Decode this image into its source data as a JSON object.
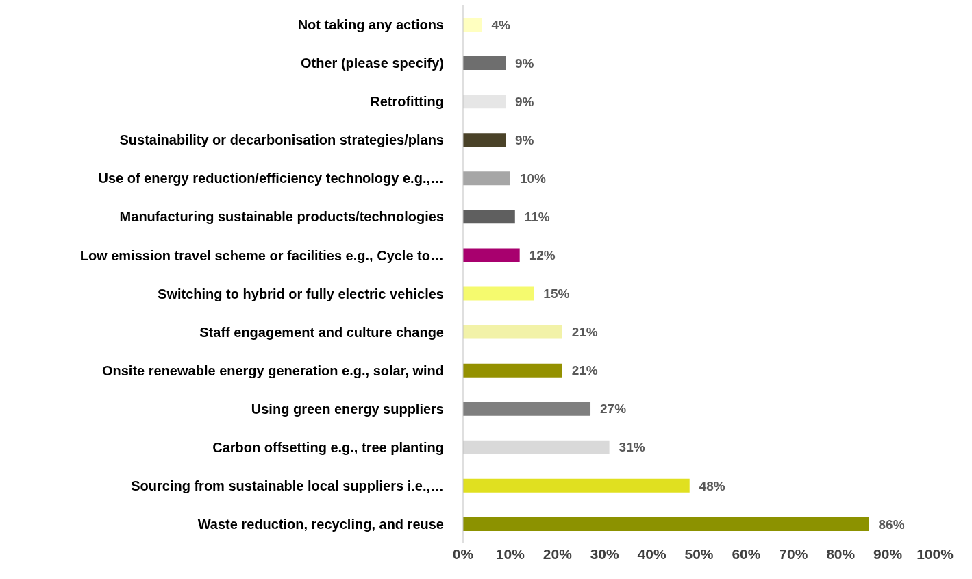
{
  "chart_data": {
    "type": "bar",
    "orientation": "horizontal",
    "categories": [
      "Not taking any actions",
      "Other (please specify)",
      "Retrofitting",
      "Sustainability or decarbonisation strategies/plans",
      "Use of energy reduction/efficiency technology e.g.,…",
      "Manufacturing sustainable products/technologies",
      "Low emission travel scheme or facilities e.g., Cycle to…",
      "Switching to hybrid or fully electric vehicles",
      "Staff engagement and culture change",
      "Onsite renewable energy generation e.g., solar, wind",
      "Using green energy suppliers",
      "Carbon offsetting e.g., tree planting",
      "Sourcing from sustainable local suppliers i.e.,…",
      "Waste reduction, recycling, and reuse"
    ],
    "values": [
      4,
      9,
      9,
      9,
      10,
      11,
      12,
      15,
      21,
      21,
      27,
      31,
      48,
      86
    ],
    "value_labels": [
      "4%",
      "9%",
      "9%",
      "9%",
      "10%",
      "11%",
      "12%",
      "15%",
      "21%",
      "21%",
      "27%",
      "31%",
      "48%",
      "86%"
    ],
    "colors": [
      "#ffffc0",
      "#6e6e6e",
      "#e6e6e6",
      "#4a4228",
      "#a6a6a6",
      "#5f5f5f",
      "#a8006e",
      "#f5fa6e",
      "#f2f2a8",
      "#949100",
      "#7f7f7f",
      "#d9d9d9",
      "#e0e020",
      "#8c9200"
    ],
    "xlim": [
      0,
      100
    ],
    "xticks": [
      {
        "value": 0,
        "label": "0%"
      },
      {
        "value": 10,
        "label": "10%"
      },
      {
        "value": 20,
        "label": "20%"
      },
      {
        "value": 30,
        "label": "30%"
      },
      {
        "value": 40,
        "label": "40%"
      },
      {
        "value": 50,
        "label": "50%"
      },
      {
        "value": 60,
        "label": "60%"
      },
      {
        "value": 70,
        "label": "70%"
      },
      {
        "value": 80,
        "label": "80%"
      },
      {
        "value": 90,
        "label": "90%"
      },
      {
        "value": 100,
        "label": "100%"
      }
    ],
    "grid": false
  }
}
